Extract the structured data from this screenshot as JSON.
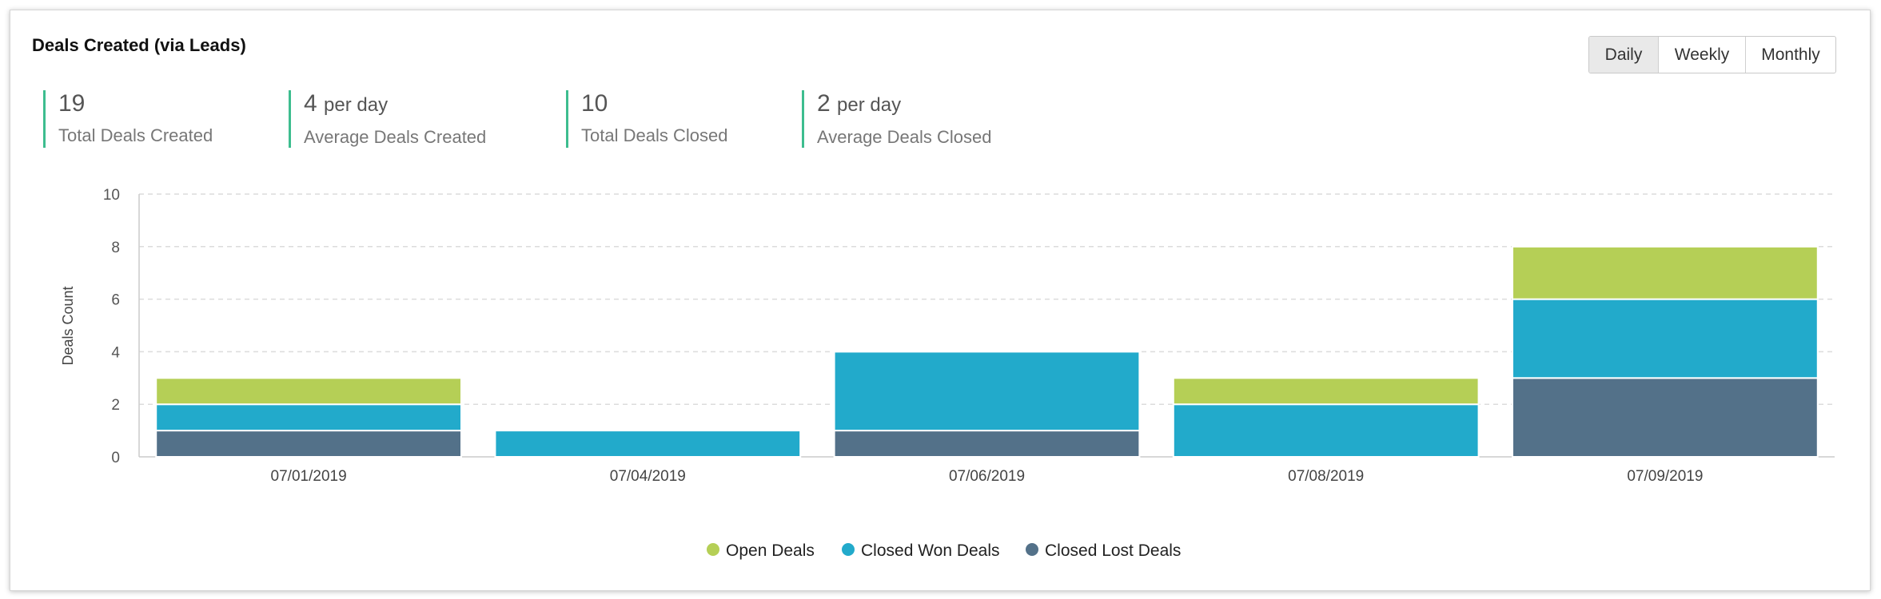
{
  "title": "Deals Created (via Leads)",
  "periods": [
    "Daily",
    "Weekly",
    "Monthly"
  ],
  "selected_period": "Daily",
  "kpis": [
    {
      "value": "19",
      "unit": "",
      "label": "Total Deals Created"
    },
    {
      "value": "4",
      "unit": "per day",
      "label": "Average Deals Created"
    },
    {
      "value": "10",
      "unit": "",
      "label": "Total Deals Closed"
    },
    {
      "value": "2",
      "unit": "per day",
      "label": "Average Deals Closed"
    }
  ],
  "chart_data": {
    "type": "bar",
    "stacked": true,
    "title": "",
    "xlabel": "",
    "ylabel": "Deals Count",
    "ylim": [
      0,
      10
    ],
    "yticks": [
      0,
      2,
      4,
      6,
      8,
      10
    ],
    "grid": true,
    "legend": "bottom-center",
    "categories": [
      "07/01/2019",
      "07/04/2019",
      "07/06/2019",
      "07/08/2019",
      "07/09/2019"
    ],
    "series": [
      {
        "name": "Closed Lost Deals",
        "color": "#537189",
        "values": [
          1,
          0,
          1,
          0,
          3
        ]
      },
      {
        "name": "Closed Won Deals",
        "color": "#22aacb",
        "values": [
          1,
          1,
          3,
          2,
          3
        ]
      },
      {
        "name": "Open Deals",
        "color": "#b5cf56",
        "values": [
          1,
          0,
          0,
          1,
          2
        ]
      }
    ],
    "legend_order": [
      2,
      1,
      0
    ]
  }
}
